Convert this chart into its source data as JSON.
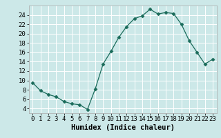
{
  "x": [
    0,
    1,
    2,
    3,
    4,
    5,
    6,
    7,
    8,
    9,
    10,
    11,
    12,
    13,
    14,
    15,
    16,
    17,
    18,
    19,
    20,
    21,
    22,
    23
  ],
  "y": [
    9.5,
    7.8,
    7.0,
    6.5,
    5.5,
    5.0,
    4.8,
    3.8,
    8.2,
    13.5,
    16.2,
    19.2,
    21.5,
    23.2,
    23.8,
    25.2,
    24.2,
    24.5,
    24.3,
    22.0,
    18.5,
    16.0,
    13.5,
    14.5
  ],
  "xlabel": "Humidex (Indice chaleur)",
  "ylim": [
    3,
    26
  ],
  "xlim": [
    -0.5,
    23.5
  ],
  "yticks": [
    4,
    6,
    8,
    10,
    12,
    14,
    16,
    18,
    20,
    22,
    24
  ],
  "xticks": [
    0,
    1,
    2,
    3,
    4,
    5,
    6,
    7,
    8,
    9,
    10,
    11,
    12,
    13,
    14,
    15,
    16,
    17,
    18,
    19,
    20,
    21,
    22,
    23
  ],
  "line_color": "#1a6b5a",
  "marker": "D",
  "marker_size": 2.5,
  "bg_color": "#cce8e8",
  "grid_color": "#ffffff",
  "xlabel_fontsize": 7.5,
  "tick_fontsize": 6.5,
  "spine_color": "#aaaaaa"
}
